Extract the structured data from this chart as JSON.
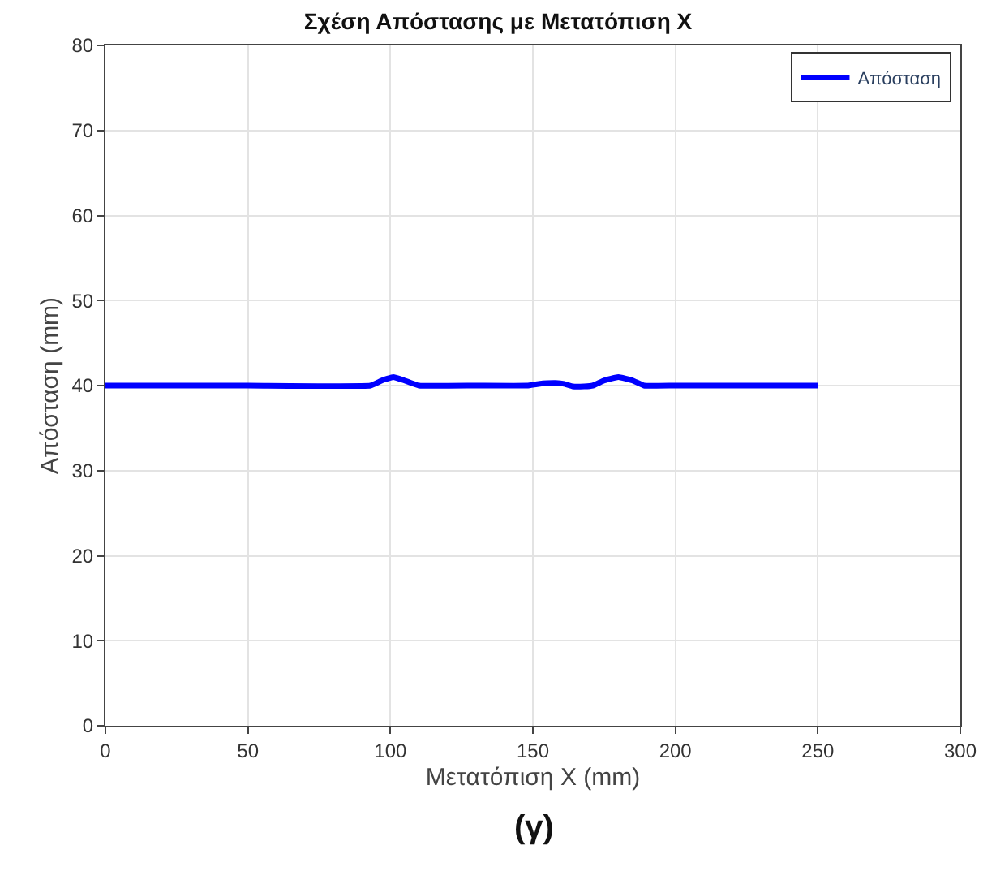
{
  "chart_data": {
    "type": "line",
    "title": "Σχέση Απόστασης με Μετατόπιση X",
    "xlabel": "Μετατόπιση X (mm)",
    "ylabel": "Απόσταση (mm)",
    "series": [
      {
        "name": "Απόσταση",
        "color": "#0000ff",
        "x": [
          0,
          50,
          93,
          97,
          101,
          105,
          110,
          130,
          148,
          152,
          158,
          161,
          164,
          168,
          171,
          175,
          180,
          185,
          189,
          200,
          250
        ],
        "values": [
          40,
          40,
          40,
          40.6,
          41,
          40.6,
          40,
          40,
          40,
          40.2,
          40.3,
          40.2,
          39.9,
          39.9,
          40,
          40.6,
          41,
          40.6,
          40,
          40,
          40
        ]
      }
    ],
    "xlim": [
      0,
      300
    ],
    "xticks": [
      0,
      50,
      100,
      150,
      200,
      250,
      300
    ],
    "ylim": [
      0,
      80
    ],
    "yticks": [
      0,
      10,
      20,
      30,
      40,
      50,
      60,
      70,
      80
    ],
    "grid": true,
    "legend": "top right",
    "marker": "none",
    "line_style": "solid",
    "annotations": [
      "(γ)"
    ]
  }
}
